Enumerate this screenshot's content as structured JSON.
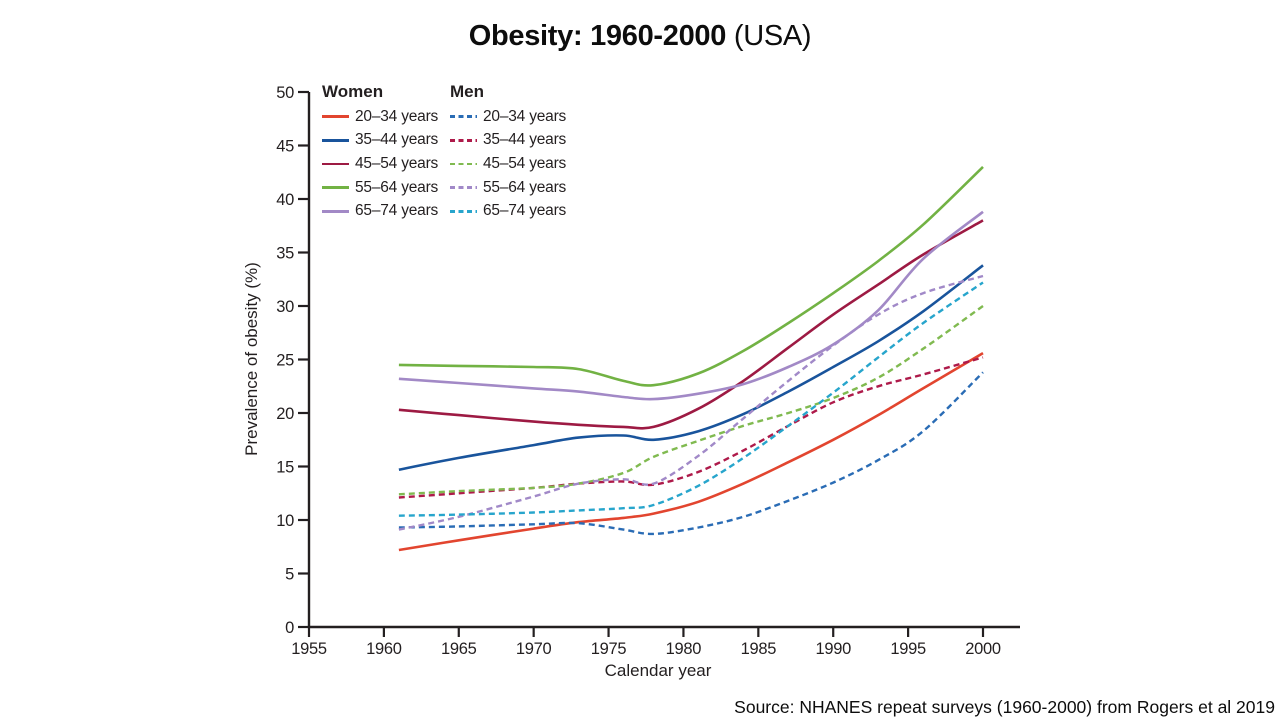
{
  "title": {
    "bold": "Obesity: 1960-2000",
    "regular": " (USA)"
  },
  "source": "Source: NHANES repeat surveys (1960-2000) from Rogers et al 2019",
  "chart_data": {
    "type": "line",
    "title": "Obesity: 1960-2000 (USA)",
    "xlabel": "Calendar year",
    "ylabel": "Prevalence of obesity (%)",
    "xlim": [
      1955,
      2002.5
    ],
    "ylim": [
      0,
      50
    ],
    "x_ticks": [
      1955,
      1960,
      1965,
      1970,
      1975,
      1980,
      1985,
      1990,
      1995,
      2000
    ],
    "y_ticks": [
      0,
      5,
      10,
      15,
      20,
      25,
      30,
      35,
      40,
      45,
      50
    ],
    "grid": false,
    "legend": {
      "women_header": "Women",
      "men_header": "Men",
      "position": "top-left-inside"
    },
    "x": [
      1961,
      1965,
      1970,
      1973,
      1976,
      1978,
      1981,
      1984,
      1987,
      1990,
      1993,
      1996,
      2000
    ],
    "series": [
      {
        "id": "women-20-34",
        "group": "Women",
        "label": "20–34 years",
        "color": "#e2452f",
        "dash": false,
        "values": [
          7.2,
          8.1,
          9.2,
          9.8,
          10.2,
          10.6,
          11.7,
          13.4,
          15.4,
          17.5,
          19.8,
          22.3,
          25.6
        ]
      },
      {
        "id": "women-35-44",
        "group": "Women",
        "label": "35–44 years",
        "color": "#19549c",
        "dash": false,
        "values": [
          14.7,
          15.8,
          17.0,
          17.7,
          17.9,
          17.5,
          18.3,
          19.9,
          22.0,
          24.3,
          26.7,
          29.5,
          33.8
        ]
      },
      {
        "id": "women-45-54",
        "group": "Women",
        "label": "45–54 years",
        "color": "#9d1a43",
        "dash": false,
        "values": [
          20.3,
          19.8,
          19.2,
          18.9,
          18.7,
          18.7,
          20.4,
          23.0,
          26.1,
          29.2,
          32.0,
          34.8,
          38.0
        ]
      },
      {
        "id": "women-55-64",
        "group": "Women",
        "label": "55–64 years",
        "color": "#72b244",
        "dash": false,
        "values": [
          24.5,
          24.4,
          24.3,
          24.1,
          23.0,
          22.6,
          23.7,
          25.8,
          28.4,
          31.2,
          34.2,
          37.6,
          43.0
        ]
      },
      {
        "id": "women-65-74",
        "group": "Women",
        "label": "65–74 years",
        "color": "#a289c6",
        "dash": false,
        "values": [
          23.2,
          22.8,
          22.3,
          22.0,
          21.5,
          21.3,
          21.8,
          22.7,
          24.3,
          26.4,
          29.6,
          34.4,
          38.8
        ]
      },
      {
        "id": "men-20-34",
        "group": "Men",
        "label": "20–34 years",
        "color": "#2a6cb5",
        "dash": true,
        "values": [
          9.3,
          9.4,
          9.6,
          9.7,
          9.1,
          8.7,
          9.3,
          10.3,
          11.8,
          13.5,
          15.6,
          18.3,
          23.8
        ]
      },
      {
        "id": "men-35-44",
        "group": "Men",
        "label": "35–44 years",
        "color": "#ae1a4a",
        "dash": true,
        "values": [
          12.1,
          12.5,
          13.0,
          13.4,
          13.6,
          13.3,
          14.5,
          16.5,
          18.8,
          21.0,
          22.5,
          23.6,
          25.2
        ]
      },
      {
        "id": "men-45-54",
        "group": "Men",
        "label": "45–54 years",
        "color": "#80ba50",
        "dash": true,
        "values": [
          12.4,
          12.7,
          13.0,
          13.4,
          14.4,
          15.9,
          17.4,
          18.8,
          20.0,
          21.4,
          23.3,
          26.0,
          30.0
        ]
      },
      {
        "id": "men-55-64",
        "group": "Men",
        "label": "55–64 years",
        "color": "#a189c8",
        "dash": true,
        "values": [
          9.1,
          10.3,
          12.2,
          13.4,
          13.8,
          13.4,
          16.0,
          19.5,
          23.0,
          26.3,
          29.2,
          31.2,
          32.8
        ]
      },
      {
        "id": "men-65-74",
        "group": "Men",
        "label": "65–74 years",
        "color": "#27a5cc",
        "dash": true,
        "values": [
          10.4,
          10.5,
          10.7,
          10.9,
          11.1,
          11.4,
          13.2,
          15.8,
          18.8,
          21.9,
          25.2,
          28.4,
          32.2
        ]
      }
    ]
  }
}
